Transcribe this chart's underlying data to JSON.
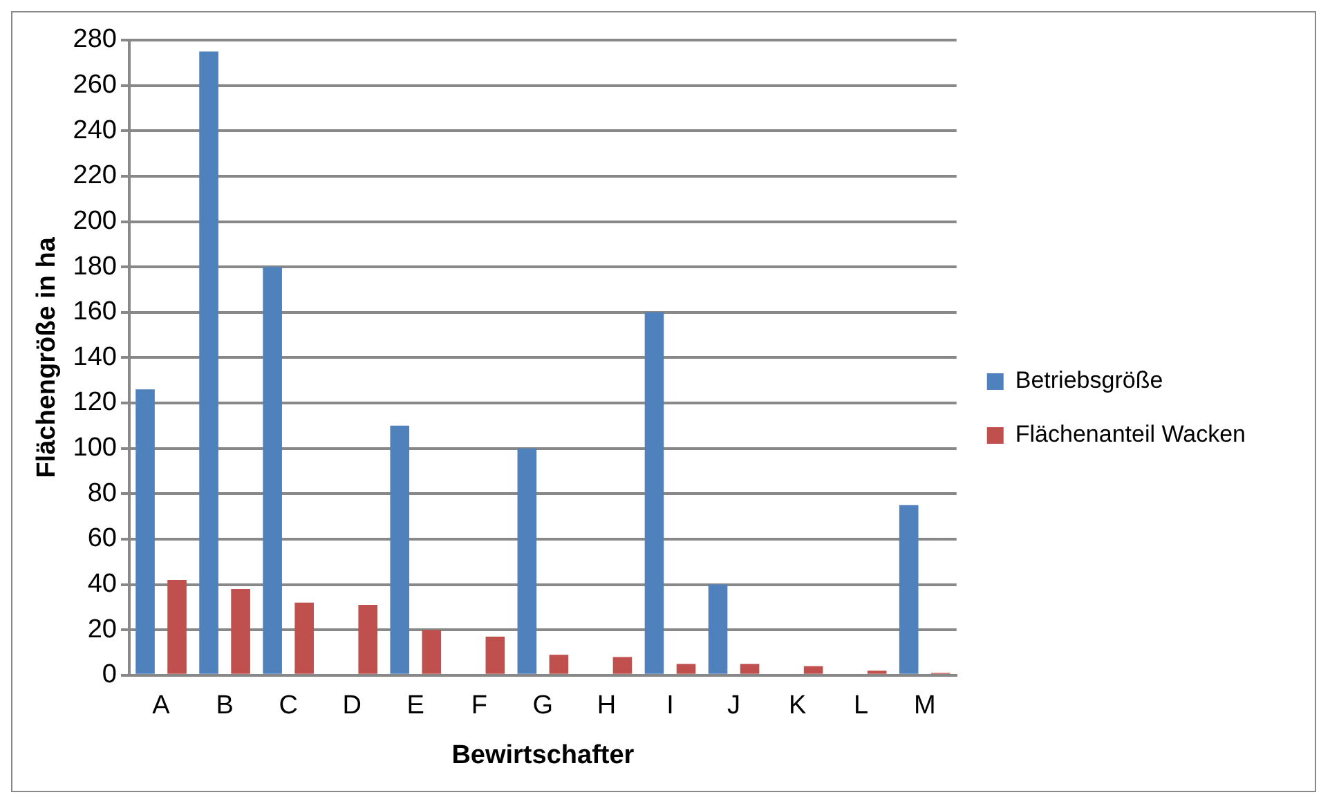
{
  "chart_data": {
    "type": "bar",
    "xlabel": "Bewirtschafter",
    "ylabel": "Flächengröße in ha",
    "categories": [
      "A",
      "B",
      "C",
      "D",
      "E",
      "F",
      "G",
      "H",
      "I",
      "J",
      "K",
      "L",
      "M"
    ],
    "series": [
      {
        "name": "Betriebsgröße",
        "color": "#4f81bd",
        "values": [
          126,
          275,
          180,
          null,
          110,
          null,
          100,
          null,
          160,
          40,
          null,
          null,
          75
        ]
      },
      {
        "name": "Flächenanteil Wacken",
        "color": "#c0504d",
        "values": [
          42,
          38,
          32,
          31,
          20,
          17,
          9,
          8,
          5,
          5,
          4,
          2,
          1
        ]
      }
    ],
    "ylim": [
      0,
      280
    ],
    "yticks": [
      0,
      20,
      40,
      60,
      80,
      100,
      120,
      140,
      160,
      180,
      200,
      220,
      240,
      260,
      280
    ],
    "grid": "y",
    "legend": "right"
  }
}
